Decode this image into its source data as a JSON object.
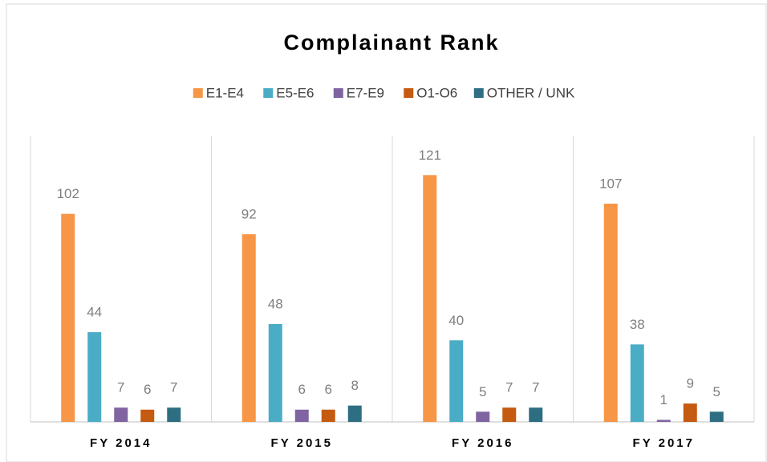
{
  "chart_data": {
    "type": "bar",
    "title": "Complainant Rank",
    "categories": [
      "FY 2014",
      "FY 2015",
      "FY 2016",
      "FY 2017"
    ],
    "series": [
      {
        "name": "E1-E4",
        "color": "#f79646",
        "values": [
          102,
          92,
          121,
          107
        ]
      },
      {
        "name": "E5-E6",
        "color": "#4bacc6",
        "values": [
          44,
          48,
          40,
          38
        ]
      },
      {
        "name": "E7-E9",
        "color": "#8064a2",
        "values": [
          7,
          6,
          5,
          1
        ]
      },
      {
        "name": "O1-O6",
        "color": "#c55a11",
        "values": [
          6,
          6,
          7,
          9
        ]
      },
      {
        "name": "OTHER / UNK",
        "color": "#2e6e82",
        "values": [
          7,
          8,
          7,
          5
        ]
      }
    ],
    "ylim": [
      0,
      140
    ],
    "legend": "top"
  }
}
